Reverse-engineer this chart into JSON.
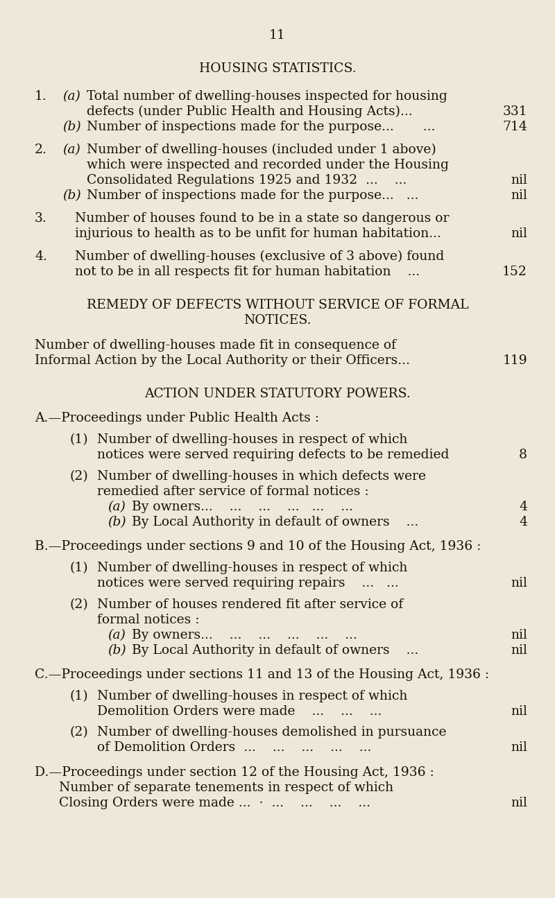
{
  "page_number": "11",
  "title": "HOUSING STATISTICS.",
  "background_color": "#ede8d8",
  "text_color": "#1a1208",
  "sections_1a_line1": "Total number of dwelling-houses inspected for housing",
  "sections_1a_line2": "defects (under Public Health and Housing Acts)...",
  "sections_1a_value": "331",
  "sections_1b_text": "Number of inspections made for the purpose...       ...",
  "sections_1b_value": "714",
  "sections_2a_line1": "Number of dwelling-houses (included under 1 above)",
  "sections_2a_line2": "which were inspected and recorded under the Housing",
  "sections_2a_line3": "Consolidated Regulations 1925 and 1932  ...    ...",
  "sections_2a_value": "nil",
  "sections_2b_text": "Number of inspections made for the purpose...   ...",
  "sections_2b_value": "nil",
  "sections_3_line1": "Number of houses found to be in a state so dangerous or",
  "sections_3_line2": "injurious to health as to be unfit for human habitation...",
  "sections_3_value": "nil",
  "sections_4_line1": "Number of dwelling-houses (exclusive of 3 above) found",
  "sections_4_line2": "not to be in all respects fit for human habitation    ...",
  "sections_4_value": "152",
  "remedy_header1": "REMEDY OF DEFECTS WITHOUT SERVICE OF FORMAL",
  "remedy_header2": "NOTICES.",
  "remedy_line1": "Number of dwelling-houses made fit in consequence of",
  "remedy_line2": "Informal Action by the Local Authority or their Officers...",
  "remedy_value": "119",
  "action_header": "ACTION UNDER STATUTORY POWERS.",
  "A_header": "A.—Proceedings under Public Health Acts :",
  "A1_line1": "Number of dwelling-houses in respect of which",
  "A1_line2": "notices were served requiring defects to be remedied",
  "A1_value": "8",
  "A2_line1": "Number of dwelling-houses in which defects were",
  "A2_line2": "remedied after service of formal notices :",
  "A2a_text": "By owners...    ...    ...    ...   ...    ...",
  "A2a_value": "4",
  "A2b_text": "By Local Authority in default of owners    ...",
  "A2b_value": "4",
  "B_header": "B.—Proceedings under sections 9 and 10 of the Housing Act, 1936 :",
  "B1_line1": "Number of dwelling-houses in respect of which",
  "B1_line2": "notices were served requiring repairs    ...   ...",
  "B1_value": "nil",
  "B2_line1": "Number of houses rendered fit after service of",
  "B2_line2": "formal notices :",
  "B2a_text": "By owners...    ...    ...    ...    ...    ...",
  "B2a_value": "nil",
  "B2b_text": "By Local Authority in default of owners    ...",
  "B2b_value": "nil",
  "C_header": "C.—Proceedings under sections 11 and 13 of the Housing Act, 1936 :",
  "C1_line1": "Number of dwelling-houses in respect of which",
  "C1_line2": "Demolition Orders were made    ...    ...    ...",
  "C1_value": "nil",
  "C2_line1": "Number of dwelling-houses demolished in pursuance",
  "C2_line2": "of Demolition Orders  ...    ...    ...    ...    ...",
  "C2_value": "nil",
  "D_header": "D.—Proceedings under section 12 of the Housing Act, 1936 :",
  "D_line1": "Number of separate tenements in respect of which",
  "D_line2": "Closing Orders were made ...  ·  ...    ...    ...    ...",
  "D_value": "nil"
}
